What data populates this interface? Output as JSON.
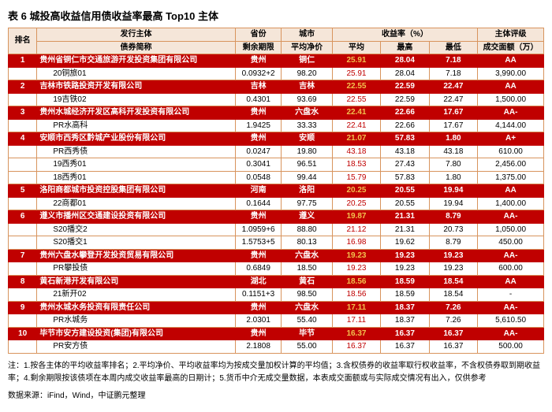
{
  "title": "表 6  城投高收益信用债收益率最高 Top10 主体",
  "headers": {
    "rank": "排名",
    "issuer_group": "发行主体",
    "province_group": "省份",
    "city_group": "城市",
    "yield_group": "收益率（%）",
    "rating_group": "主体评级",
    "bond_abbr": "债券简称",
    "remain": "剩余期限",
    "avg_price": "平均净价",
    "avg": "平均",
    "max": "最高",
    "min": "最低",
    "vol": "成交面额（万）"
  },
  "rows": [
    {
      "type": "issuer",
      "rank": "1",
      "name": "贵州省铜仁市交通旅游开发投资集团有限公司",
      "prov": "贵州",
      "city": "铜仁",
      "avg": "25.91",
      "max": "28.04",
      "min": "7.18",
      "rating": "AA"
    },
    {
      "type": "bond",
      "name": "20铜旅01",
      "remain": "0.0932+2",
      "price": "98.20",
      "avg": "25.91",
      "max": "28.04",
      "min": "7.18",
      "vol": "3,990.00"
    },
    {
      "type": "issuer",
      "rank": "2",
      "name": "吉林市铁路投资开发有限公司",
      "prov": "吉林",
      "city": "吉林",
      "avg": "22.55",
      "max": "22.59",
      "min": "22.47",
      "rating": "AA"
    },
    {
      "type": "bond",
      "name": "19吉铁02",
      "remain": "0.4301",
      "price": "93.69",
      "avg": "22.55",
      "max": "22.59",
      "min": "22.47",
      "vol": "1,500.00"
    },
    {
      "type": "issuer",
      "rank": "3",
      "name": "贵州水城经济开发区高科开发投资有限公司",
      "prov": "贵州",
      "city": "六盘水",
      "avg": "22.41",
      "max": "22.66",
      "min": "17.67",
      "rating": "AA-"
    },
    {
      "type": "bond",
      "name": "PR水高科",
      "remain": "1.9425",
      "price": "33.33",
      "avg": "22.41",
      "max": "22.66",
      "min": "17.67",
      "vol": "4,144.00"
    },
    {
      "type": "issuer",
      "rank": "4",
      "name": "安顺市西秀区黔城产业股份有限公司",
      "prov": "贵州",
      "city": "安顺",
      "avg": "21.07",
      "max": "57.83",
      "min": "1.80",
      "rating": "A+"
    },
    {
      "type": "bond",
      "name": "PR西秀债",
      "remain": "0.0247",
      "price": "19.80",
      "avg": "43.18",
      "max": "43.18",
      "min": "43.18",
      "vol": "610.00"
    },
    {
      "type": "bond",
      "name": "19西秀01",
      "remain": "0.3041",
      "price": "96.51",
      "avg": "18.53",
      "max": "27.43",
      "min": "7.80",
      "vol": "2,456.00"
    },
    {
      "type": "bond",
      "name": "18西秀01",
      "remain": "0.0548",
      "price": "99.44",
      "avg": "15.79",
      "max": "57.83",
      "min": "1.80",
      "vol": "1,375.00"
    },
    {
      "type": "issuer",
      "rank": "5",
      "name": "洛阳商都城市投资控股集团有限公司",
      "prov": "河南",
      "city": "洛阳",
      "avg": "20.25",
      "max": "20.55",
      "min": "19.94",
      "rating": "AA"
    },
    {
      "type": "bond",
      "name": "22商都01",
      "remain": "0.1644",
      "price": "97.75",
      "avg": "20.25",
      "max": "20.55",
      "min": "19.94",
      "vol": "1,400.00"
    },
    {
      "type": "issuer",
      "rank": "6",
      "name": "遵义市播州区交通建设投资有限公司",
      "prov": "贵州",
      "city": "遵义",
      "avg": "19.87",
      "max": "21.31",
      "min": "8.79",
      "rating": "AA-"
    },
    {
      "type": "bond",
      "name": "S20播交2",
      "remain": "1.0959+6",
      "price": "88.80",
      "avg": "21.12",
      "max": "21.31",
      "min": "20.73",
      "vol": "1,050.00"
    },
    {
      "type": "bond",
      "name": "S20播交1",
      "remain": "1.5753+5",
      "price": "80.13",
      "avg": "16.98",
      "max": "19.62",
      "min": "8.79",
      "vol": "450.00"
    },
    {
      "type": "issuer",
      "rank": "7",
      "name": "贵州六盘水攀登开发投资贸易有限公司",
      "prov": "贵州",
      "city": "六盘水",
      "avg": "19.23",
      "max": "19.23",
      "min": "19.23",
      "rating": "AA-"
    },
    {
      "type": "bond",
      "name": "PR攀投债",
      "remain": "0.6849",
      "price": "18.50",
      "avg": "19.23",
      "max": "19.23",
      "min": "19.23",
      "vol": "600.00"
    },
    {
      "type": "issuer",
      "rank": "8",
      "name": "黄石新港开发有限公司",
      "prov": "湖北",
      "city": "黄石",
      "avg": "18.56",
      "max": "18.59",
      "min": "18.54",
      "rating": "AA"
    },
    {
      "type": "bond",
      "name": "21新开02",
      "remain": "0.1151+3",
      "price": "98.50",
      "avg": "18.56",
      "max": "18.59",
      "min": "18.54",
      "vol": "-"
    },
    {
      "type": "issuer",
      "rank": "9",
      "name": "贵州水城水务投资有限责任公司",
      "prov": "贵州",
      "city": "六盘水",
      "avg": "17.11",
      "max": "18.37",
      "min": "7.26",
      "rating": "AA-"
    },
    {
      "type": "bond",
      "name": "PR水城务",
      "remain": "2.0301",
      "price": "55.40",
      "avg": "17.11",
      "max": "18.37",
      "min": "7.26",
      "vol": "5,610.50"
    },
    {
      "type": "issuer",
      "rank": "10",
      "name": "毕节市安方建设投资(集团)有限公司",
      "prov": "贵州",
      "city": "毕节",
      "avg": "16.37",
      "max": "16.37",
      "min": "16.37",
      "rating": "AA-"
    },
    {
      "type": "bond",
      "name": "PR安方债",
      "remain": "2.1808",
      "price": "55.00",
      "avg": "16.37",
      "max": "16.37",
      "min": "16.37",
      "vol": "500.00"
    }
  ],
  "footnote": "注：1.按各主体的平均收益率排名；2.平均净价、平均收益率均为按成交量加权计算的平均值；3.含权债券的收益率取行权收益率，不含权债券取到期收益率；4.剩余期限按该债项在本周内成交收益率最高的日期计；5.货币中介无成交量数据，本表成交面额或与实际成交情况有出入，仅供参考",
  "source": "数据来源：iFind，Wind，中证鹏元整理"
}
